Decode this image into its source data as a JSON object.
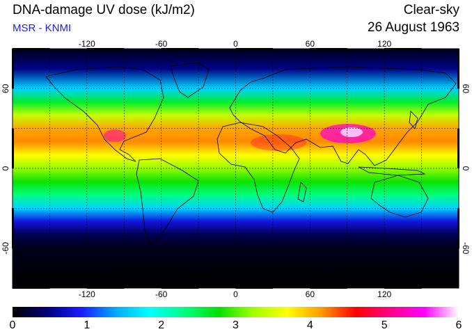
{
  "header": {
    "title": "DNA-damage UV dose (kJ/m2)",
    "source": "MSR - KNMI",
    "mode": "Clear-sky",
    "date": "26 August 1963"
  },
  "map": {
    "lon_ticks": [
      "-120",
      "-60",
      "0",
      "60",
      "120"
    ],
    "lat_ticks": [
      "60",
      "0",
      "-60"
    ],
    "grid_lons": [
      -150,
      -120,
      -90,
      -60,
      -30,
      0,
      30,
      60,
      90,
      120,
      150
    ],
    "grid_lats": [
      60,
      30,
      0,
      -30,
      -60
    ]
  },
  "colorbar": {
    "labels": [
      "0",
      "1",
      "2",
      "3",
      "4",
      "5",
      "6"
    ],
    "stops": [
      "#000000",
      "#00007a",
      "#1a1aff",
      "#00aaff",
      "#00ffff",
      "#00ff80",
      "#00e000",
      "#a0ff00",
      "#ffff00",
      "#ff9900",
      "#ff0000",
      "#ff0088",
      "#ff00ff",
      "#ffffff"
    ]
  },
  "chart_data": {
    "type": "heatmap",
    "title": "DNA-damage UV dose (kJ/m2)",
    "colorbar_range": [
      0,
      6
    ],
    "x_axis": "longitude",
    "xlim": [
      -180,
      180
    ],
    "y_axis": "latitude",
    "ylim": [
      -90,
      90
    ],
    "zonal_profile": [
      {
        "lat": 90,
        "dose": 0.1
      },
      {
        "lat": 75,
        "dose": 0.5
      },
      {
        "lat": 60,
        "dose": 1.6
      },
      {
        "lat": 50,
        "dose": 2.6
      },
      {
        "lat": 40,
        "dose": 3.4
      },
      {
        "lat": 30,
        "dose": 4.1
      },
      {
        "lat": 20,
        "dose": 4.2
      },
      {
        "lat": 10,
        "dose": 3.7
      },
      {
        "lat": 0,
        "dose": 3.2
      },
      {
        "lat": -10,
        "dose": 2.8
      },
      {
        "lat": -20,
        "dose": 2.3
      },
      {
        "lat": -30,
        "dose": 1.6
      },
      {
        "lat": -40,
        "dose": 0.8
      },
      {
        "lat": -50,
        "dose": 0.3
      },
      {
        "lat": -60,
        "dose": 0.1
      },
      {
        "lat": -90,
        "dose": 0.0
      }
    ]
  }
}
